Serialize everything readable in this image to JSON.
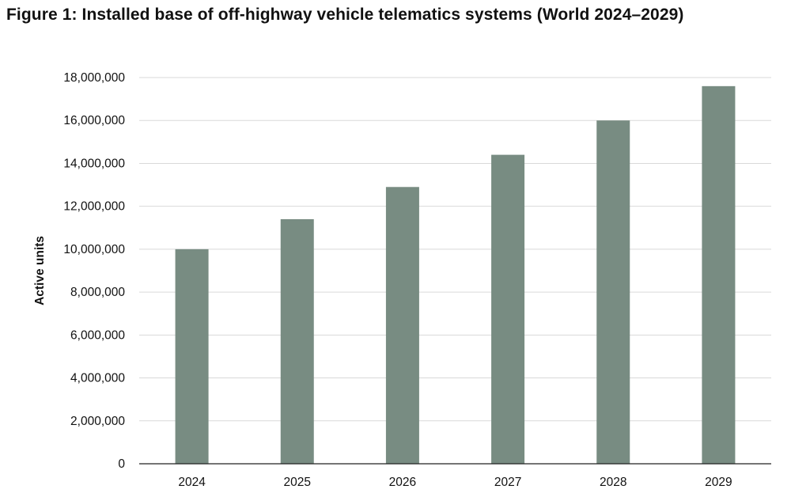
{
  "chart_data": {
    "type": "bar",
    "title": "Figure 1: Installed base of off-highway vehicle telematics systems (World 2024–2029)",
    "xlabel": "",
    "ylabel": "Active units",
    "categories": [
      "2024",
      "2025",
      "2026",
      "2027",
      "2028",
      "2029"
    ],
    "values": [
      10000000,
      11400000,
      12900000,
      14400000,
      16000000,
      17600000
    ],
    "ylim": [
      0,
      18000000
    ],
    "yticks": [
      0,
      2000000,
      4000000,
      6000000,
      8000000,
      10000000,
      12000000,
      14000000,
      16000000,
      18000000
    ],
    "ytick_labels": [
      "0",
      "2,000,000",
      "4,000,000",
      "6,000,000",
      "8,000,000",
      "10,000,000",
      "12,000,000",
      "14,000,000",
      "16,000,000",
      "18,000,000"
    ],
    "grid": true,
    "legend": "none",
    "colors": {
      "bar": "#788c82",
      "grid": "#d9d9d9",
      "axis": "#222222"
    }
  }
}
